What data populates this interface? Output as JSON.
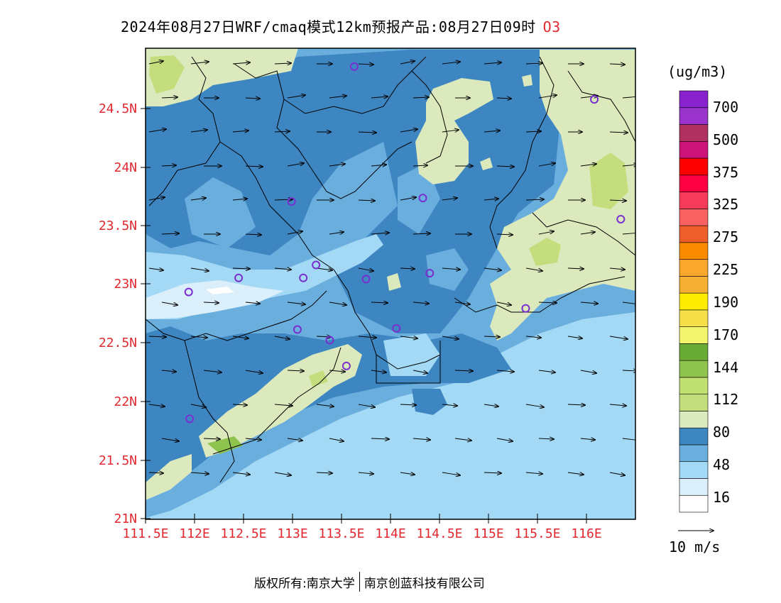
{
  "title": {
    "main": "2024年08月27日WRF/cmaq模式12km预报产品:08月27日09时",
    "variable": "O3"
  },
  "unit": "(ug/m3)",
  "colorbar": {
    "colors": [
      "#ffffff",
      "#dbeffb",
      "#a3d9f5",
      "#6aaede",
      "#3d86c2",
      "#dce9bd",
      "#c4de7e",
      "#c0e072",
      "#8ec34d",
      "#6aab35",
      "#f2f56e",
      "#f5e04a",
      "#ffed00",
      "#f5b033",
      "#fba72c",
      "#fb8c00",
      "#ed5e2a",
      "#fa6161",
      "#f63a59",
      "#ff0044",
      "#ff0000",
      "#cc1377",
      "#b0305f",
      "#9933cc",
      "#8822cc"
    ],
    "labels": [
      "16",
      "48",
      "80",
      "112",
      "144",
      "170",
      "190",
      "225",
      "275",
      "325",
      "375",
      "500",
      "700"
    ]
  },
  "latitude_ticks": [
    "24.5N",
    "24N",
    "23.5N",
    "23N",
    "22.5N",
    "22N",
    "21.5N",
    "21N"
  ],
  "longitude_ticks": [
    "111.5E",
    "112E",
    "112.5E",
    "113E",
    "113.5E",
    "114E",
    "114.5E",
    "115E",
    "115.5E",
    "116E"
  ],
  "wind_legend": "10 m/s",
  "stations": [
    {
      "lon": 113.63,
      "lat": 24.85
    },
    {
      "lon": 116.08,
      "lat": 24.57
    },
    {
      "lon": 112.99,
      "lat": 23.7
    },
    {
      "lon": 114.33,
      "lat": 23.73
    },
    {
      "lon": 116.35,
      "lat": 23.55
    },
    {
      "lon": 113.24,
      "lat": 23.16
    },
    {
      "lon": 112.45,
      "lat": 23.05
    },
    {
      "lon": 113.11,
      "lat": 23.05
    },
    {
      "lon": 113.75,
      "lat": 23.04
    },
    {
      "lon": 114.4,
      "lat": 23.09
    },
    {
      "lon": 111.94,
      "lat": 22.93
    },
    {
      "lon": 115.38,
      "lat": 22.79
    },
    {
      "lon": 113.05,
      "lat": 22.61
    },
    {
      "lon": 114.06,
      "lat": 22.62
    },
    {
      "lon": 113.38,
      "lat": 22.52
    },
    {
      "lon": 113.55,
      "lat": 22.3
    },
    {
      "lon": 111.95,
      "lat": 21.85
    }
  ],
  "footer": {
    "left": "版权所有:南京大学",
    "right": "南京创蓝科技有限公司"
  }
}
